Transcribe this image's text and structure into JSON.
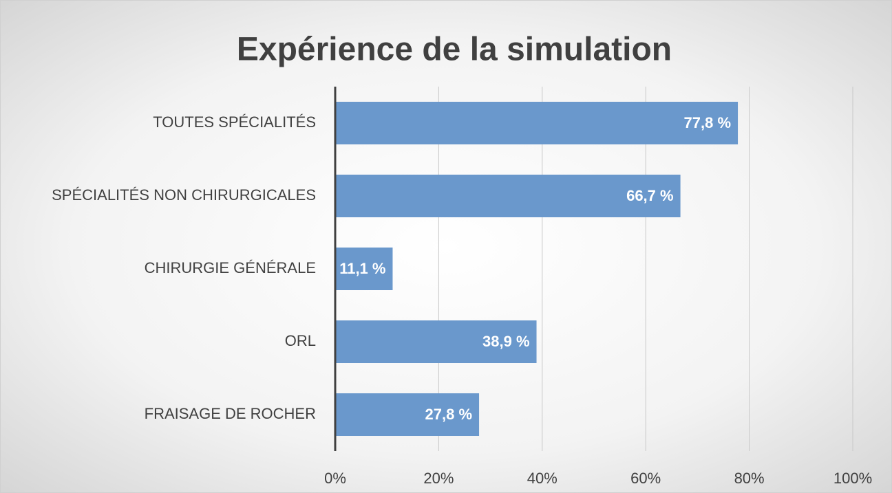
{
  "chart_data": {
    "type": "bar",
    "orientation": "horizontal",
    "title": "Expérience de la simulation",
    "categories": [
      "TOUTES SPÉCIALITÉS",
      "SPÉCIALITÉS NON CHIRURGICALES",
      "CHIRURGIE GÉNÉRALE",
      "ORL",
      "FRAISAGE DE ROCHER"
    ],
    "values": [
      77.8,
      66.7,
      11.1,
      38.9,
      27.8
    ],
    "value_labels": [
      "77,8 %",
      "66,7 %",
      "11,1 %",
      "38,9 %",
      "27,8 %"
    ],
    "color": "#6a98cc",
    "xlim": [
      0,
      100
    ],
    "xticks": [
      {
        "value": 0,
        "label": "0%"
      },
      {
        "value": 20,
        "label": "20%"
      },
      {
        "value": 40,
        "label": "40%"
      },
      {
        "value": 60,
        "label": "60%"
      },
      {
        "value": 80,
        "label": "80%"
      },
      {
        "value": 100,
        "label": "100%"
      }
    ],
    "grid": true
  }
}
